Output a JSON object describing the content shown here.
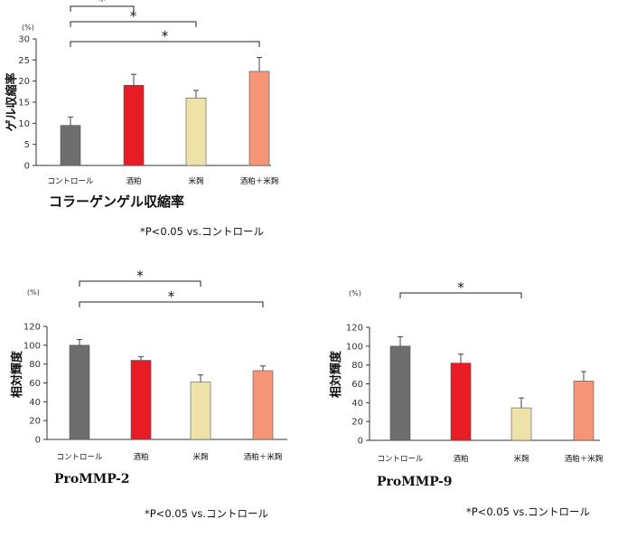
{
  "chart_data": [
    {
      "type": "bar",
      "title": "コラーゲンゲル収縮率",
      "ylabel": "ゲル収縮率",
      "unit": "(%)",
      "categories": [
        "コントロール",
        "酒粕",
        "米麹",
        "酒粕＋米麹"
      ],
      "values": [
        9.5,
        19,
        16,
        22.3
      ],
      "errors": [
        2,
        2.6,
        1.8,
        3.3
      ],
      "colors": [
        "#6e6e6e",
        "#e81c24",
        "#efe2a8",
        "#f49577"
      ],
      "ylim": [
        0,
        30
      ],
      "yticks": [
        0,
        5,
        10,
        15,
        20,
        25,
        30
      ],
      "significance": [
        {
          "from": 0,
          "to": 1,
          "label": "*"
        },
        {
          "from": 0,
          "to": 2,
          "label": "*"
        },
        {
          "from": 0,
          "to": 3,
          "label": "*"
        }
      ],
      "note": "*P<0.05 vs.コントロール",
      "grid": false
    },
    {
      "type": "bar",
      "title": "ProMMP-2",
      "ylabel": "相対輝度",
      "unit": "(%)",
      "categories": [
        "コントロール",
        "酒粕",
        "米麹",
        "酒粕＋米麹"
      ],
      "values": [
        100,
        84,
        61,
        73
      ],
      "errors": [
        6,
        4,
        7.5,
        5
      ],
      "colors": [
        "#6e6e6e",
        "#e81c24",
        "#efe2a8",
        "#f49577"
      ],
      "ylim": [
        0,
        120
      ],
      "yticks": [
        0,
        20,
        40,
        60,
        80,
        100,
        120
      ],
      "significance": [
        {
          "from": 0,
          "to": 2,
          "label": "*"
        },
        {
          "from": 0,
          "to": 3,
          "label": "*"
        }
      ],
      "note": "*P<0.05 vs.コントロール",
      "grid": false
    },
    {
      "type": "bar",
      "title": "ProMMP-9",
      "ylabel": "相対輝度",
      "unit": "(%)",
      "categories": [
        "コントロール",
        "酒粕",
        "米麹",
        "酒粕＋米麹"
      ],
      "values": [
        100,
        82,
        34.5,
        63
      ],
      "errors": [
        10,
        9.5,
        10.5,
        10
      ],
      "colors": [
        "#6e6e6e",
        "#e81c24",
        "#efe2a8",
        "#f49577"
      ],
      "ylim": [
        0,
        120
      ],
      "yticks": [
        0,
        20,
        40,
        60,
        80,
        100,
        120
      ],
      "significance": [
        {
          "from": 0,
          "to": 2,
          "label": "*"
        }
      ],
      "note": "*P<0.05 vs.コントロール",
      "grid": false
    }
  ]
}
